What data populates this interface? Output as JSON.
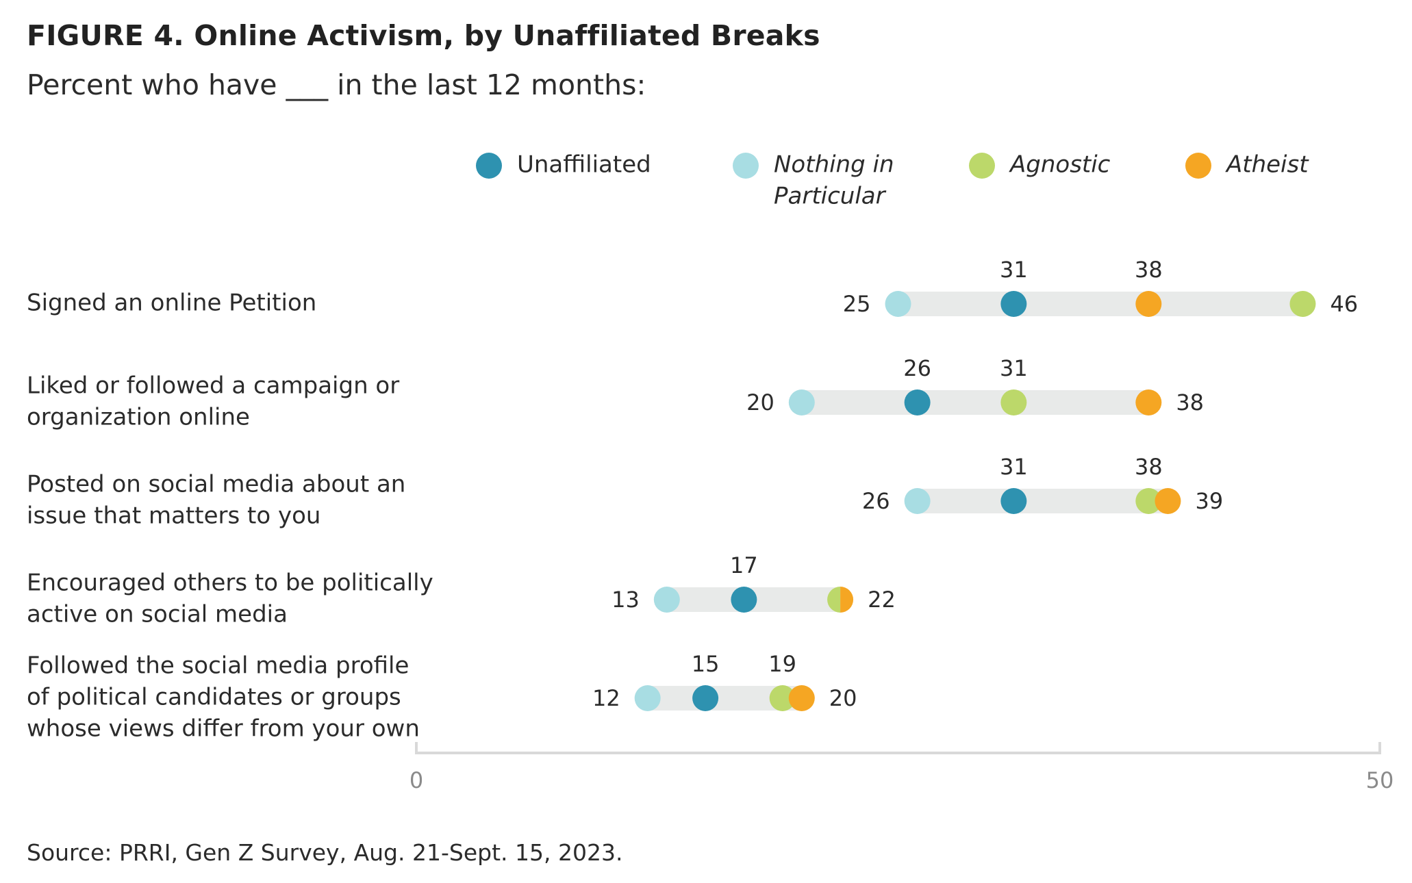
{
  "header": {
    "title": "FIGURE 4. Online Activism, by Unaffiliated Breaks",
    "subtitle": "Percent who have ___ in the last 12 months:"
  },
  "footer": {
    "source": "Source: PRRI, Gen Z Survey, Aug. 21-Sept. 15, 2023."
  },
  "chart_data": {
    "type": "dot-range",
    "title": "FIGURE 4. Online Activism, by Unaffiliated Breaks",
    "subtitle": "Percent who have ___ in the last 12 months:",
    "xlim": [
      0,
      50
    ],
    "xticks": [
      "0",
      "50"
    ],
    "grid": false,
    "legend_position": "top",
    "categories": [
      [
        "Signed an online Petition"
      ],
      [
        "Liked or followed a campaign or",
        "organization online"
      ],
      [
        "Posted on social media about an",
        "issue that matters to you"
      ],
      [
        "Encouraged others to be politically",
        "active on social media"
      ],
      [
        "Followed the social media profile",
        "of political candidates or groups",
        "whose views differ from your own"
      ]
    ],
    "series": [
      {
        "name": [
          "Unaffiliated"
        ],
        "italic": false,
        "color": "#2e92b0",
        "values": [
          31,
          26,
          31,
          17,
          15
        ]
      },
      {
        "name": [
          "Nothing in",
          "Particular"
        ],
        "italic": true,
        "color": "#a8dde3",
        "values": [
          25,
          20,
          26,
          13,
          12
        ]
      },
      {
        "name": [
          "Agnostic"
        ],
        "italic": true,
        "color": "#bcd86a",
        "values": [
          46,
          31,
          38,
          22,
          19
        ]
      },
      {
        "name": [
          "Atheist"
        ],
        "italic": true,
        "color": "#f5a623",
        "values": [
          38,
          38,
          39,
          22,
          20
        ]
      }
    ]
  }
}
